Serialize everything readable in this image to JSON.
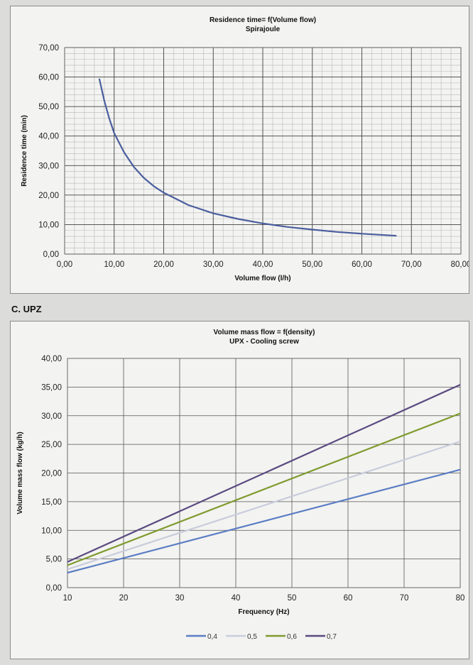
{
  "section_label": "C. UPZ",
  "chart_data": [
    {
      "type": "line",
      "title": "Residence time= f(Volume flow)",
      "subtitle": "Spirajoule",
      "xlabel": "Volume flow (l/h)",
      "ylabel": "Residence time (min)",
      "xlim": [
        0,
        80
      ],
      "ylim": [
        0,
        70
      ],
      "xticks": [
        "0,00",
        "10,00",
        "20,00",
        "30,00",
        "40,00",
        "50,00",
        "60,00",
        "70,00",
        "80,00"
      ],
      "yticks": [
        "0,00",
        "10,00",
        "20,00",
        "30,00",
        "40,00",
        "50,00",
        "60,00",
        "70,00"
      ],
      "grid": true,
      "series": [
        {
          "color": "#4a5e9e",
          "x": [
            7,
            8,
            9,
            10,
            12,
            14,
            16,
            18,
            20,
            25,
            30,
            35,
            40,
            45,
            50,
            55,
            60,
            67
          ],
          "y": [
            59.5,
            52,
            46,
            41,
            34.5,
            29.5,
            25.8,
            23,
            20.8,
            16.6,
            13.8,
            11.9,
            10.4,
            9.2,
            8.3,
            7.5,
            6.9,
            6.2
          ]
        }
      ]
    },
    {
      "type": "line",
      "title": "Volume mass flow = f(density)",
      "subtitle": "UPX - Cooling screw",
      "xlabel": "Frequency (Hz)",
      "ylabel": "Volume mass flow (kg/h)",
      "xlim": [
        10,
        80
      ],
      "ylim": [
        0,
        40
      ],
      "xticks": [
        "10",
        "20",
        "30",
        "40",
        "50",
        "60",
        "70",
        "80"
      ],
      "yticks": [
        "0,00",
        "5,00",
        "10,00",
        "15,00",
        "20,00",
        "25,00",
        "30,00",
        "35,00",
        "40,00"
      ],
      "grid": true,
      "legend": "bottom",
      "series": [
        {
          "name": "0,4",
          "color": "#5b7dc4",
          "x": [
            10,
            80
          ],
          "y": [
            2.6,
            20.6
          ]
        },
        {
          "name": "0,5",
          "color": "#c9ccdb",
          "x": [
            10,
            80
          ],
          "y": [
            3.2,
            25.5
          ]
        },
        {
          "name": "0,6",
          "color": "#7f9b2e",
          "x": [
            10,
            80
          ],
          "y": [
            3.9,
            30.4
          ]
        },
        {
          "name": "0,7",
          "color": "#5a4a80",
          "x": [
            10,
            80
          ],
          "y": [
            4.5,
            35.4
          ]
        }
      ]
    }
  ]
}
